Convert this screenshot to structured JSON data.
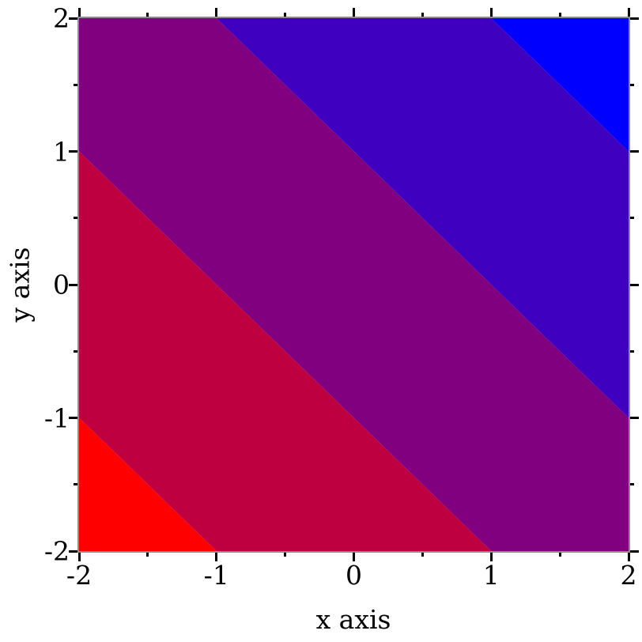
{
  "figure": {
    "background_color": "#ffffff",
    "frame_color": "#8c8c8c",
    "tick_color": "#000000",
    "text_color": "#000000"
  },
  "chart_data": {
    "type": "heatmap",
    "subtype": "filled-contour",
    "title": "",
    "xlabel": "x axis",
    "ylabel": "y axis",
    "xlim": [
      -2,
      2
    ],
    "ylim": [
      -2,
      2
    ],
    "grid": false,
    "legend": "none",
    "x_major_ticks": [
      -2,
      -1,
      0,
      1,
      2
    ],
    "x_minor_ticks": [
      -1.5,
      -0.5,
      0.5,
      1.5
    ],
    "y_major_ticks": [
      -2,
      -1,
      0,
      1,
      2
    ],
    "y_minor_ticks": [
      -1.5,
      -0.5,
      0.5,
      1.5
    ],
    "x_tick_labels": [
      "-2",
      "-1",
      "0",
      "1",
      "2"
    ],
    "y_tick_labels": [
      "-2",
      "-1",
      "0",
      "1",
      "2"
    ],
    "value_function": "z = x + y",
    "level_boundaries": [
      -3,
      -1,
      1,
      3
    ],
    "bands": [
      {
        "range": "z < -3",
        "color": "#ff0000",
        "polygon": [
          [
            -2,
            -2
          ],
          [
            -1,
            -2
          ],
          [
            -2,
            -1
          ]
        ]
      },
      {
        "range": "-3 <= z < -1",
        "color": "#bf0040",
        "polygon": [
          [
            -2,
            -1
          ],
          [
            -1,
            -2
          ],
          [
            1,
            -2
          ],
          [
            -2,
            1
          ]
        ]
      },
      {
        "range": "-1 <= z < 1",
        "color": "#800080",
        "polygon": [
          [
            -2,
            1
          ],
          [
            1,
            -2
          ],
          [
            2,
            -2
          ],
          [
            2,
            -1
          ],
          [
            -1,
            2
          ],
          [
            -2,
            2
          ]
        ]
      },
      {
        "range": "1 <= z < 3",
        "color": "#4000bf",
        "polygon": [
          [
            -1,
            2
          ],
          [
            2,
            -1
          ],
          [
            2,
            1
          ],
          [
            1,
            2
          ]
        ]
      },
      {
        "range": "z >= 3",
        "color": "#0000ff",
        "polygon": [
          [
            1,
            2
          ],
          [
            2,
            1
          ],
          [
            2,
            2
          ]
        ]
      }
    ]
  }
}
